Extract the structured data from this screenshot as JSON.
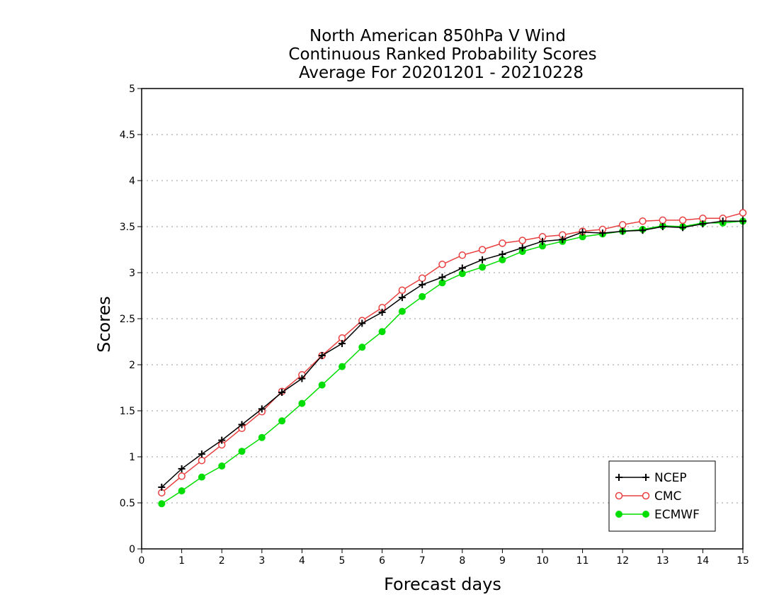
{
  "chart_data": {
    "type": "line",
    "title_lines": [
      "North American 850hPa V Wind",
      "Continuous Ranked Probability Scores",
      "Average For 20201201 - 20210228"
    ],
    "xlabel": "Forecast days",
    "ylabel": "Scores",
    "xlim": [
      0,
      15
    ],
    "ylim": [
      0,
      5
    ],
    "xticks": [
      0,
      1,
      2,
      3,
      4,
      5,
      6,
      7,
      8,
      9,
      10,
      11,
      12,
      13,
      14,
      15
    ],
    "yticks": [
      0,
      0.5,
      1,
      1.5,
      2,
      2.5,
      3,
      3.5,
      4,
      4.5,
      5
    ],
    "ytick_labels": [
      "0",
      "0.5",
      "1",
      "1.5",
      "2",
      "2.5",
      "3",
      "3.5",
      "4",
      "4.5",
      "5"
    ],
    "grid": "horizontal dotted",
    "legend_position": "bottom-right",
    "x": [
      0.5,
      1.0,
      1.5,
      2.0,
      2.5,
      3.0,
      3.5,
      4.0,
      4.5,
      5.0,
      5.5,
      6.0,
      6.5,
      7.0,
      7.5,
      8.0,
      8.5,
      9.0,
      9.5,
      10.0,
      10.5,
      11.0,
      11.5,
      12.0,
      12.5,
      13.0,
      13.5,
      14.0,
      14.5,
      15.0
    ],
    "series": [
      {
        "name": "NCEP",
        "color": "#000000",
        "marker": "plus",
        "values": [
          0.67,
          0.87,
          1.03,
          1.18,
          1.35,
          1.52,
          1.7,
          1.85,
          2.1,
          2.23,
          2.45,
          2.57,
          2.73,
          2.87,
          2.95,
          3.05,
          3.14,
          3.2,
          3.27,
          3.34,
          3.36,
          3.44,
          3.43,
          3.45,
          3.46,
          3.5,
          3.49,
          3.53,
          3.56,
          3.56
        ]
      },
      {
        "name": "CMC",
        "color": "#e84040",
        "marker": "open-circle",
        "values": [
          0.61,
          0.79,
          0.96,
          1.13,
          1.31,
          1.49,
          1.71,
          1.89,
          2.1,
          2.29,
          2.48,
          2.62,
          2.81,
          2.94,
          3.09,
          3.19,
          3.25,
          3.32,
          3.35,
          3.39,
          3.41,
          3.45,
          3.47,
          3.52,
          3.56,
          3.57,
          3.57,
          3.59,
          3.59,
          3.65
        ]
      },
      {
        "name": "ECMWF",
        "color": "#00dd00",
        "marker": "filled-circle",
        "values": [
          0.49,
          0.63,
          0.78,
          0.9,
          1.06,
          1.21,
          1.39,
          1.58,
          1.78,
          1.98,
          2.19,
          2.36,
          2.58,
          2.74,
          2.89,
          2.99,
          3.06,
          3.14,
          3.23,
          3.29,
          3.34,
          3.39,
          3.42,
          3.45,
          3.47,
          3.51,
          3.5,
          3.54,
          3.54,
          3.56
        ]
      }
    ]
  }
}
